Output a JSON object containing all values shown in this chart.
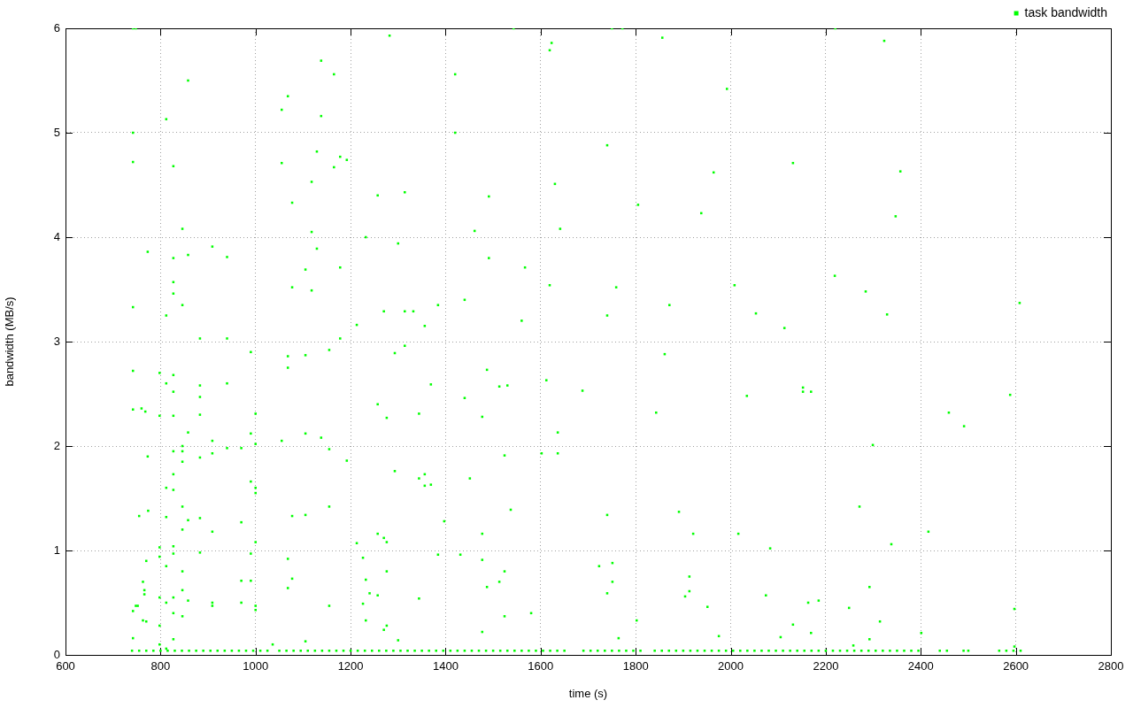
{
  "chart_data": {
    "type": "scatter",
    "xlabel": "time (s)",
    "ylabel": "bandwidth (MB/s)",
    "xlim": [
      600,
      2800
    ],
    "ylim": [
      0,
      6
    ],
    "xticks": [
      600,
      800,
      1000,
      1200,
      1400,
      1600,
      1800,
      2000,
      2200,
      2400,
      2600,
      2800
    ],
    "yticks": [
      0,
      1,
      2,
      3,
      4,
      5,
      6
    ],
    "grid": true,
    "legend": "top right",
    "marker": "square",
    "series": [
      {
        "name": "task bandwidth",
        "color": "#00ff00",
        "x": [
          742,
          748,
          742,
          742,
          742,
          742,
          742,
          752,
          760,
          742,
          748,
          742,
          755,
          763,
          766,
          766,
          763,
          773,
          773,
          774,
          770,
          770,
          768,
          812,
          812,
          812,
          812,
          812,
          812,
          812,
          812,
          798,
          798,
          798,
          798,
          798,
          798,
          798,
          827,
          827,
          827,
          827,
          827,
          827,
          827,
          827,
          827,
          827,
          827,
          827,
          827,
          827,
          827,
          846,
          846,
          846,
          846,
          846,
          846,
          846,
          846,
          846,
          846,
          858,
          858,
          858,
          858,
          858,
          883,
          883,
          883,
          883,
          883,
          883,
          883,
          909,
          909,
          909,
          909,
          909,
          909,
          940,
          940,
          940,
          940,
          970,
          970,
          970,
          970,
          990,
          990,
          990,
          990,
          990,
          1000,
          1000,
          1000,
          1000,
          1000,
          1000,
          1000,
          1036,
          1055,
          1055,
          1055,
          1068,
          1068,
          1068,
          1068,
          1068,
          1077,
          1077,
          1077,
          1077,
          1105,
          1105,
          1105,
          1105,
          1105,
          1118,
          1118,
          1118,
          1129,
          1129,
          1138,
          1138,
          1138,
          1155,
          1155,
          1155,
          1155,
          1165,
          1165,
          1178,
          1178,
          1178,
          1192,
          1192,
          1213,
          1213,
          1226,
          1226,
          1232,
          1232,
          1232,
          1240,
          1257,
          1257,
          1257,
          1257,
          1270,
          1270,
          1270,
          1276,
          1276,
          1276,
          1276,
          1282,
          1293,
          1293,
          1300,
          1300,
          1314,
          1314,
          1314,
          1332,
          1344,
          1344,
          1344,
          1356,
          1356,
          1356,
          1369,
          1369,
          1384,
          1384,
          1397,
          1420,
          1420,
          1431,
          1440,
          1440,
          1451,
          1461,
          1477,
          1477,
          1477,
          1477,
          1487,
          1487,
          1491,
          1491,
          1513,
          1513,
          1524,
          1524,
          1524,
          1530,
          1537,
          1560,
          1567,
          1580,
          1602,
          1612,
          1619,
          1619,
          1623,
          1630,
          1636,
          1636,
          1641,
          1688,
          1723,
          1740,
          1740,
          1740,
          1740,
          1751,
          1751,
          1759,
          1764,
          1805,
          1802,
          1843,
          1856,
          1861,
          1871,
          1891,
          1904,
          1913,
          1913,
          1921,
          1938,
          1951,
          1964,
          1975,
          1992,
          2008,
          2016,
          2034,
          2053,
          2074,
          2083,
          2105,
          2113,
          2131,
          2131,
          2152,
          2152,
          2163,
          2169,
          2169,
          2185,
          2219,
          2249,
          2258,
          2271,
          2284,
          2292,
          2292,
          2299,
          2314,
          2323,
          2329,
          2338,
          2347,
          2357,
          2401,
          2416,
          2459,
          2491,
          2588,
          2597,
          2597,
          2608,
          1543,
          1750,
          1772,
          2220,
          740,
          755,
          770,
          785,
          800,
          815,
          830,
          845,
          860,
          875,
          890,
          905,
          920,
          935,
          950,
          965,
          980,
          995,
          1010,
          1025,
          1050,
          1065,
          1080,
          1095,
          1110,
          1125,
          1140,
          1155,
          1170,
          1185,
          1200,
          1215,
          1230,
          1245,
          1260,
          1275,
          1290,
          1305,
          1320,
          1335,
          1350,
          1365,
          1380,
          1395,
          1410,
          1425,
          1440,
          1455,
          1470,
          1485,
          1500,
          1515,
          1530,
          1545,
          1560,
          1575,
          1590,
          1605,
          1620,
          1635,
          1650,
          1690,
          1705,
          1720,
          1735,
          1750,
          1765,
          1780,
          1795,
          1810,
          1840,
          1855,
          1870,
          1885,
          1900,
          1915,
          1930,
          1945,
          1960,
          1975,
          1990,
          2005,
          2020,
          2035,
          2050,
          2065,
          2080,
          2095,
          2110,
          2125,
          2140,
          2155,
          2170,
          2185,
          2200,
          2215,
          2230,
          2245,
          2260,
          2275,
          2290,
          2305,
          2320,
          2335,
          2350,
          2365,
          2380,
          2395,
          2440,
          2455,
          2490,
          2500,
          2565,
          2580,
          2595,
          2610
        ],
        "values": [
          6,
          6,
          5,
          4.72,
          3.33,
          2.72,
          0.42,
          0.47,
          2.36,
          2.35,
          0.47,
          0.16,
          1.33,
          0.7,
          0.62,
          0.58,
          0.33,
          3.86,
          1.9,
          1.38,
          0.9,
          0.32,
          2.33,
          5.13,
          3.25,
          2.6,
          1.6,
          1.32,
          0.85,
          0.5,
          0.06,
          2.7,
          2.29,
          1.03,
          0.94,
          0.55,
          0.28,
          0.1,
          4.68,
          3.8,
          3.57,
          3.46,
          2.68,
          2.52,
          2.29,
          1.95,
          1.73,
          1.58,
          1.04,
          0.97,
          0.55,
          0.4,
          0.15,
          4.08,
          3.35,
          2,
          1.95,
          1.85,
          1.42,
          1.2,
          0.8,
          0.62,
          0.37,
          5.5,
          3.83,
          2.13,
          1.29,
          0.52,
          3.03,
          2.58,
          2.47,
          2.3,
          1.89,
          1.31,
          0.98,
          3.91,
          2.05,
          1.93,
          1.18,
          0.5,
          0.47,
          3.81,
          3.03,
          2.6,
          1.98,
          1.98,
          1.27,
          0.5,
          0.71,
          2.9,
          1.66,
          0.97,
          0.71,
          2.12,
          2.31,
          2.02,
          1.6,
          1.55,
          1.08,
          0.47,
          0.43,
          0.1,
          5.22,
          2.05,
          4.71,
          5.35,
          2.86,
          2.75,
          0.92,
          0.64,
          4.33,
          3.52,
          1.33,
          0.73,
          2.87,
          3.69,
          2.12,
          1.34,
          0.13,
          4.05,
          3.49,
          4.53,
          4.82,
          3.89,
          5.69,
          5.16,
          2.08,
          2.92,
          1.97,
          1.42,
          0.47,
          5.56,
          4.67,
          4.77,
          3.71,
          3.03,
          4.74,
          1.86,
          3.16,
          1.07,
          0.93,
          0.49,
          4,
          0.72,
          0.33,
          0.59,
          4.4,
          2.4,
          1.16,
          0.57,
          3.29,
          1.12,
          0.24,
          2.27,
          1.08,
          0.8,
          0.28,
          5.93,
          1.76,
          2.89,
          3.94,
          0.14,
          4.43,
          2.96,
          3.29,
          3.29,
          2.31,
          0.54,
          1.69,
          3.15,
          1.62,
          1.73,
          1.63,
          2.59,
          3.35,
          0.96,
          1.28,
          5.56,
          5,
          0.96,
          3.4,
          2.46,
          1.69,
          4.06,
          1.16,
          0.91,
          0.22,
          2.28,
          2.73,
          0.65,
          4.39,
          3.8,
          2.57,
          0.7,
          1.91,
          0.8,
          0.37,
          2.58,
          1.39,
          3.2,
          3.71,
          0.4,
          1.93,
          2.63,
          3.54,
          5.79,
          5.86,
          4.51,
          2.13,
          1.93,
          4.08,
          2.53,
          0.85,
          4.88,
          3.25,
          1.34,
          0.59,
          0.88,
          0.7,
          3.52,
          0.16,
          4.31,
          0.33,
          2.32,
          5.91,
          2.88,
          3.35,
          1.37,
          0.56,
          0.75,
          0.61,
          1.16,
          4.23,
          0.46,
          4.62,
          0.18,
          5.42,
          3.54,
          1.16,
          2.48,
          3.27,
          0.57,
          1.02,
          0.17,
          3.13,
          4.71,
          0.29,
          2.56,
          2.52,
          0.5,
          2.52,
          0.21,
          0.52,
          3.63,
          0.45,
          0.09,
          1.42,
          3.48,
          0.15,
          0.65,
          2.01,
          0.32,
          5.88,
          3.26,
          1.06,
          4.2,
          4.63,
          0.21,
          1.18,
          2.32,
          2.19,
          2.49,
          0.44,
          0.08,
          3.37,
          6,
          6,
          6,
          6,
          0.04,
          0.04,
          0.04,
          0.04,
          0.04,
          0.04,
          0.04,
          0.04,
          0.04,
          0.04,
          0.04,
          0.04,
          0.04,
          0.04,
          0.04,
          0.04,
          0.04,
          0.04,
          0.04,
          0.04,
          0.04,
          0.04,
          0.04,
          0.04,
          0.04,
          0.04,
          0.04,
          0.04,
          0.04,
          0.04,
          0.04,
          0.04,
          0.04,
          0.04,
          0.04,
          0.04,
          0.04,
          0.04,
          0.04,
          0.04,
          0.04,
          0.04,
          0.04,
          0.04,
          0.04,
          0.04,
          0.04,
          0.04,
          0.04,
          0.04,
          0.04,
          0.04,
          0.04,
          0.04,
          0.04,
          0.04,
          0.04,
          0.04,
          0.04,
          0.04,
          0.04,
          0.04,
          0.04,
          0.04,
          0.04,
          0.04,
          0.04,
          0.04,
          0.04,
          0.04,
          0.04,
          0.04,
          0.04,
          0.04,
          0.04,
          0.04,
          0.04,
          0.04,
          0.04,
          0.04,
          0.04,
          0.04,
          0.04,
          0.04,
          0.04,
          0.04,
          0.04,
          0.04,
          0.04,
          0.04,
          0.04,
          0.04,
          0.04,
          0.04,
          0.04,
          0.04,
          0.04,
          0.04,
          0.04,
          0.04,
          0.04,
          0.04,
          0.04,
          0.04,
          0.04,
          0.04,
          0.04,
          0.04,
          0.04,
          0.04,
          0.04,
          0.04,
          0.04,
          0.04,
          0.04,
          0.04
        ]
      }
    ]
  }
}
